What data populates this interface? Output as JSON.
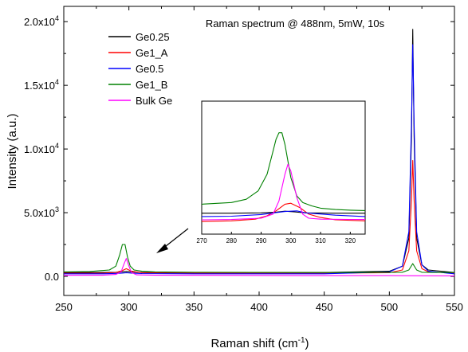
{
  "chart_data": {
    "type": "line",
    "title": "Raman spectrum @ 488nm, 5mW, 10s",
    "xlabel": "Raman shift (cm",
    "xlabel_sup": "-1",
    "xlabel_close": ")",
    "ylabel": "Intensity (a.u.)",
    "xlim": [
      250,
      550
    ],
    "ylim": [
      -1500,
      21200
    ],
    "x_ticks": [
      250,
      300,
      350,
      400,
      450,
      500,
      550
    ],
    "y_ticks": [
      {
        "value": 0,
        "mantissa": "0.0",
        "exp": ""
      },
      {
        "value": 5000,
        "mantissa": "5.0x10",
        "exp": "3"
      },
      {
        "value": 10000,
        "mantissa": "1.0x10",
        "exp": "4"
      },
      {
        "value": 15000,
        "mantissa": "1.5x10",
        "exp": "4"
      },
      {
        "value": 20000,
        "mantissa": "2.0x10",
        "exp": "4"
      }
    ],
    "legend_position": "top-left",
    "series": [
      {
        "name": "Ge0.25",
        "color": "#000000",
        "x": [
          250,
          280,
          290,
          295,
          298,
          302,
          310,
          350,
          450,
          500,
          510,
          515,
          517,
          518,
          519,
          521,
          525,
          530,
          550
        ],
        "y": [
          300,
          300,
          320,
          350,
          380,
          350,
          300,
          300,
          300,
          400,
          800,
          3000,
          11000,
          19400,
          11000,
          3000,
          900,
          500,
          300
        ]
      },
      {
        "name": "Ge1_A",
        "color": "#ff0000",
        "x": [
          250,
          280,
          290,
          295,
          298,
          302,
          310,
          350,
          450,
          500,
          510,
          515,
          517,
          518,
          519,
          521,
          525,
          530,
          550
        ],
        "y": [
          250,
          250,
          300,
          450,
          600,
          400,
          280,
          250,
          250,
          280,
          500,
          2000,
          6000,
          9100,
          6000,
          2000,
          600,
          350,
          250
        ]
      },
      {
        "name": "Ge0.5",
        "color": "#0000ff",
        "x": [
          250,
          280,
          290,
          295,
          298,
          302,
          310,
          350,
          450,
          500,
          510,
          515,
          517,
          518,
          519,
          521,
          525,
          530,
          550
        ],
        "y": [
          200,
          200,
          230,
          260,
          280,
          260,
          220,
          200,
          200,
          350,
          800,
          3500,
          12000,
          18200,
          12000,
          3500,
          900,
          400,
          200
        ]
      },
      {
        "name": "Ge1_B",
        "color": "#008000",
        "x": [
          250,
          270,
          285,
          290,
          293,
          295,
          297,
          299,
          301,
          304,
          310,
          320,
          350,
          450,
          510,
          515,
          518,
          521,
          525,
          550
        ],
        "y": [
          350,
          380,
          500,
          800,
          1700,
          2500,
          2500,
          1500,
          800,
          500,
          400,
          350,
          320,
          300,
          320,
          500,
          1000,
          500,
          320,
          300
        ]
      },
      {
        "name": "Bulk Ge",
        "color": "#ff00ff",
        "x": [
          250,
          280,
          290,
          294,
          296,
          298,
          300,
          302,
          306,
          320,
          350,
          450,
          500,
          550
        ],
        "y": [
          80,
          90,
          150,
          350,
          900,
          1400,
          800,
          300,
          120,
          90,
          80,
          60,
          60,
          40
        ]
      }
    ],
    "inset": {
      "xlim": [
        270,
        325
      ],
      "ylim": [
        0,
        4000
      ],
      "x_ticks": [
        270,
        280,
        290,
        300,
        310,
        320
      ],
      "series": [
        {
          "name": "Ge0.25",
          "color": "#000000",
          "x": [
            270,
            280,
            290,
            295,
            298,
            301,
            305,
            315,
            325
          ],
          "y": [
            630,
            630,
            640,
            660,
            690,
            670,
            640,
            630,
            630
          ]
        },
        {
          "name": "Ge1_A",
          "color": "#ff0000",
          "x": [
            270,
            280,
            288,
            292,
            295,
            298,
            300,
            303,
            306,
            310,
            315,
            325
          ],
          "y": [
            380,
            400,
            450,
            550,
            700,
            900,
            930,
            800,
            600,
            500,
            430,
            400
          ]
        },
        {
          "name": "Ge0.5",
          "color": "#0000ff",
          "x": [
            270,
            280,
            290,
            295,
            298,
            302,
            305,
            315,
            325
          ],
          "y": [
            530,
            540,
            590,
            650,
            680,
            700,
            640,
            570,
            530
          ]
        },
        {
          "name": "Ge1_B",
          "color": "#008000",
          "x": [
            270,
            280,
            285,
            289,
            292,
            294,
            295,
            296,
            297,
            298,
            299,
            300,
            302,
            304,
            307,
            310,
            315,
            320,
            325
          ],
          "y": [
            900,
            950,
            1050,
            1300,
            1800,
            2500,
            2850,
            3050,
            3050,
            2700,
            2200,
            1700,
            1150,
            950,
            850,
            780,
            740,
            720,
            710
          ]
        },
        {
          "name": "Bulk Ge",
          "color": "#ff00ff",
          "x": [
            270,
            280,
            290,
            294,
            296,
            298,
            299,
            300,
            302,
            304,
            306,
            310,
            320,
            325
          ],
          "y": [
            430,
            440,
            480,
            600,
            1000,
            1800,
            2100,
            1900,
            1100,
            600,
            480,
            450,
            440,
            440
          ]
        }
      ]
    }
  }
}
